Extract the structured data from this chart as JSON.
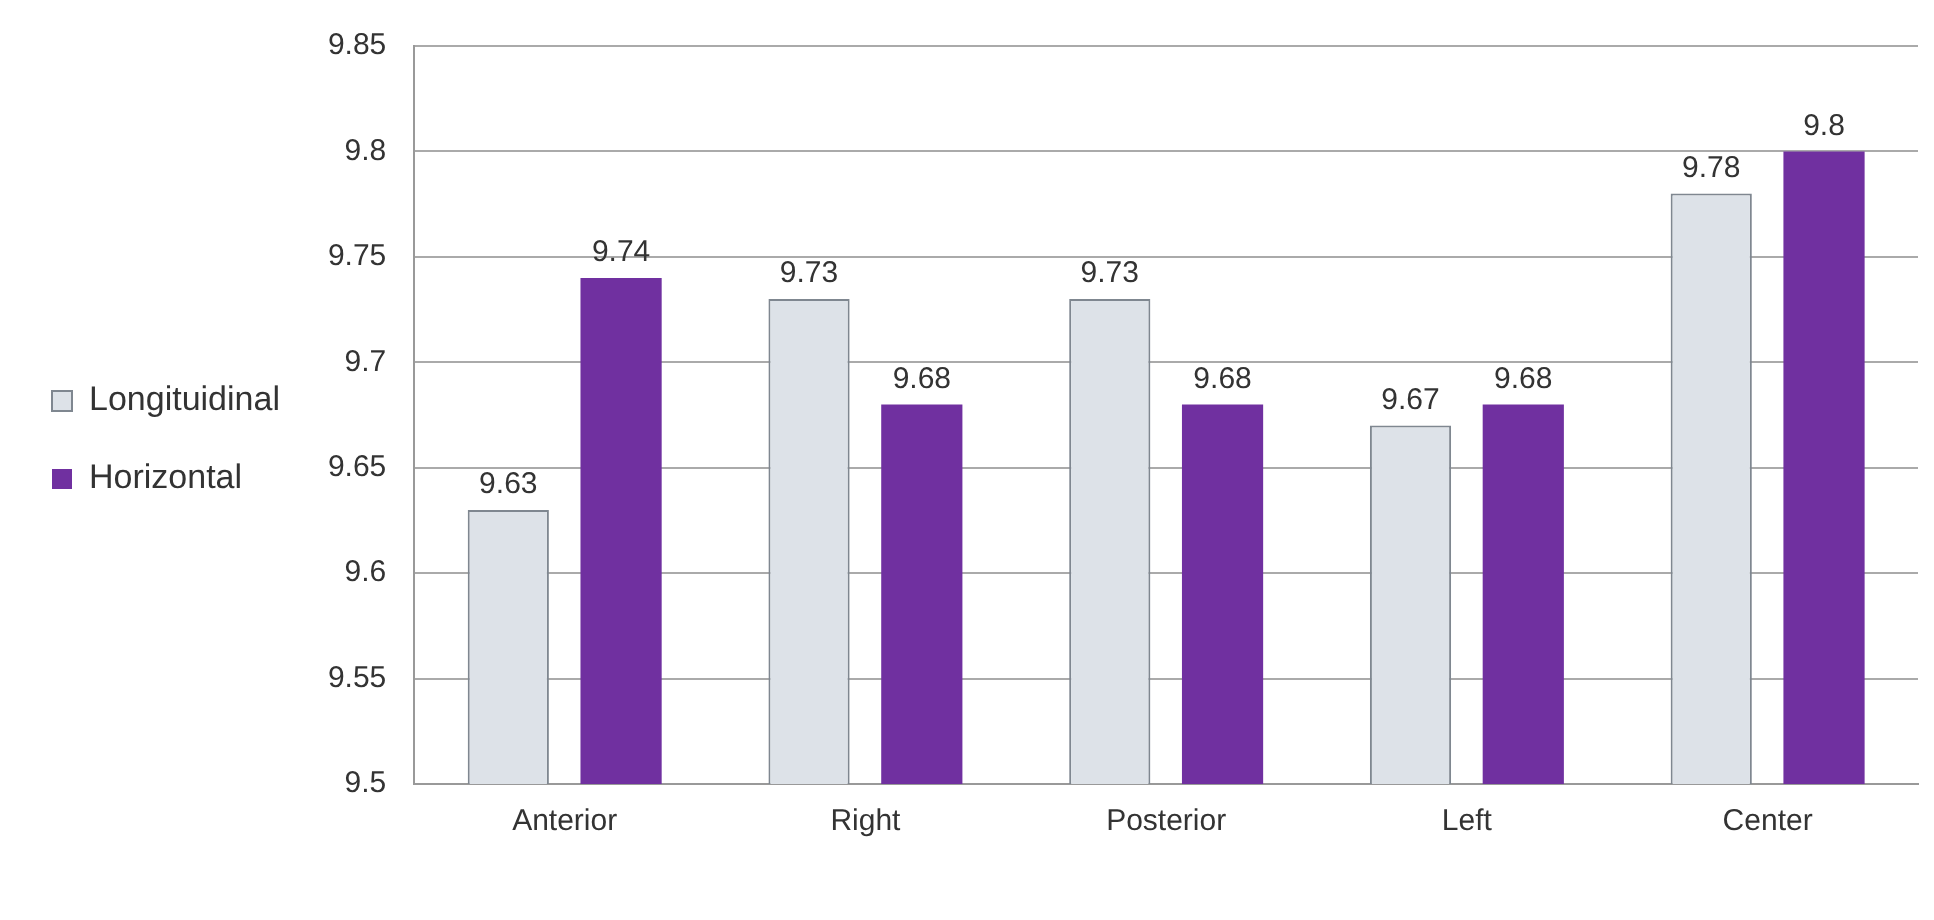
{
  "chart_data": {
    "type": "bar",
    "categories": [
      "Anterior",
      "Right",
      "Posterior",
      "Left",
      "Center"
    ],
    "series": [
      {
        "name": "Longituidinal",
        "color": "#dde2e8",
        "values": [
          9.63,
          9.73,
          9.73,
          9.67,
          9.78
        ]
      },
      {
        "name": "Horizontal",
        "color": "#7030a0",
        "values": [
          9.74,
          9.68,
          9.68,
          9.68,
          9.8
        ]
      }
    ],
    "ylim": [
      9.5,
      9.85
    ],
    "yticks": [
      9.5,
      9.55,
      9.6,
      9.65,
      9.7,
      9.75,
      9.8,
      9.85
    ],
    "grid": "y",
    "legend": "left",
    "data_labels": true
  }
}
